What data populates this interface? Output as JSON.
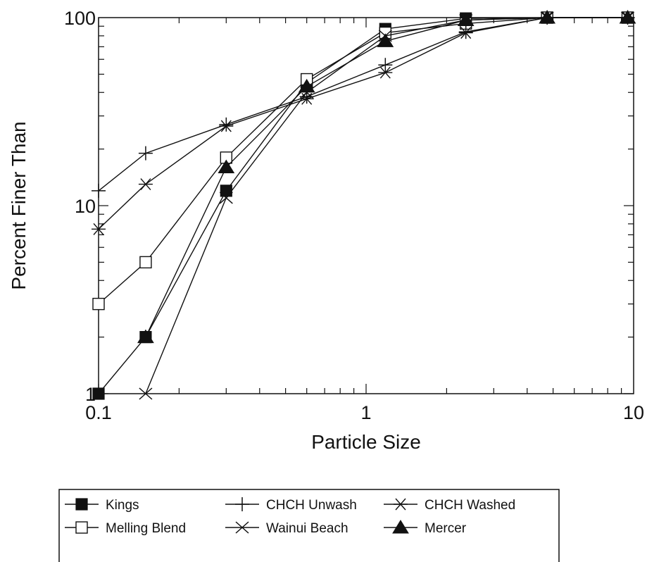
{
  "chart_data": {
    "type": "line",
    "title": "",
    "xlabel": "Particle Size",
    "ylabel": "Percent Finer Than",
    "xscale": "log",
    "yscale": "log",
    "xlim": [
      0.1,
      10
    ],
    "ylim": [
      1,
      100
    ],
    "x_tick_labels": [
      {
        "value": 0.1,
        "label": "0.1"
      },
      {
        "value": 1,
        "label": "1"
      },
      {
        "value": 10,
        "label": "10"
      }
    ],
    "y_tick_labels": [
      {
        "value": 1,
        "label": "1"
      },
      {
        "value": 10,
        "label": "10"
      },
      {
        "value": 100,
        "label": "100"
      }
    ],
    "grid": false,
    "legend_position": "bottom",
    "series": [
      {
        "name": "Kings",
        "marker": "filled-square",
        "points": [
          [
            0.1,
            1.0
          ],
          [
            0.15,
            2.0
          ],
          [
            0.3,
            12.0
          ],
          [
            0.6,
            45.0
          ],
          [
            1.18,
            87.0
          ],
          [
            2.36,
            99.0
          ],
          [
            4.75,
            100.0
          ],
          [
            9.5,
            100.0
          ]
        ]
      },
      {
        "name": "Melling Blend",
        "marker": "open-square",
        "points": [
          [
            0.1,
            3.0
          ],
          [
            0.15,
            5.0
          ],
          [
            0.3,
            18.0
          ],
          [
            0.6,
            47.0
          ],
          [
            1.18,
            83.0
          ],
          [
            2.36,
            93.0
          ],
          [
            4.75,
            100.0
          ],
          [
            9.5,
            100.0
          ]
        ]
      },
      {
        "name": "CHCH Unwash",
        "marker": "plus",
        "points": [
          [
            0.1,
            12.0
          ],
          [
            0.15,
            19.0
          ],
          [
            0.3,
            27.0
          ],
          [
            0.6,
            38.0
          ],
          [
            1.18,
            56.0
          ],
          [
            2.36,
            84.0
          ],
          [
            4.75,
            100.0
          ],
          [
            9.5,
            100.0
          ]
        ]
      },
      {
        "name": "Wainui Beach",
        "marker": "cross",
        "points": [
          [
            0.15,
            1.0
          ],
          [
            0.3,
            11.0
          ],
          [
            0.6,
            40.0
          ],
          [
            1.18,
            80.0
          ],
          [
            2.36,
            97.0
          ],
          [
            4.75,
            100.0
          ],
          [
            9.5,
            100.0
          ]
        ]
      },
      {
        "name": "CHCH Washed",
        "marker": "asterisk",
        "points": [
          [
            0.1,
            7.5
          ],
          [
            0.15,
            13.0
          ],
          [
            0.3,
            26.5
          ],
          [
            0.6,
            37.0
          ],
          [
            1.18,
            51.0
          ],
          [
            2.36,
            83.0
          ],
          [
            4.75,
            100.0
          ],
          [
            9.5,
            100.0
          ]
        ]
      },
      {
        "name": "Mercer",
        "marker": "filled-triangle",
        "points": [
          [
            0.15,
            2.0
          ],
          [
            0.3,
            16.0
          ],
          [
            0.6,
            43.0
          ],
          [
            1.18,
            75.0
          ],
          [
            2.36,
            97.0
          ],
          [
            4.75,
            100.0
          ],
          [
            9.5,
            100.0
          ]
        ]
      }
    ],
    "legend_order": [
      "Kings",
      "CHCH Unwash",
      "CHCH Washed",
      "Melling Blend",
      "Wainui Beach",
      "Mercer"
    ]
  }
}
